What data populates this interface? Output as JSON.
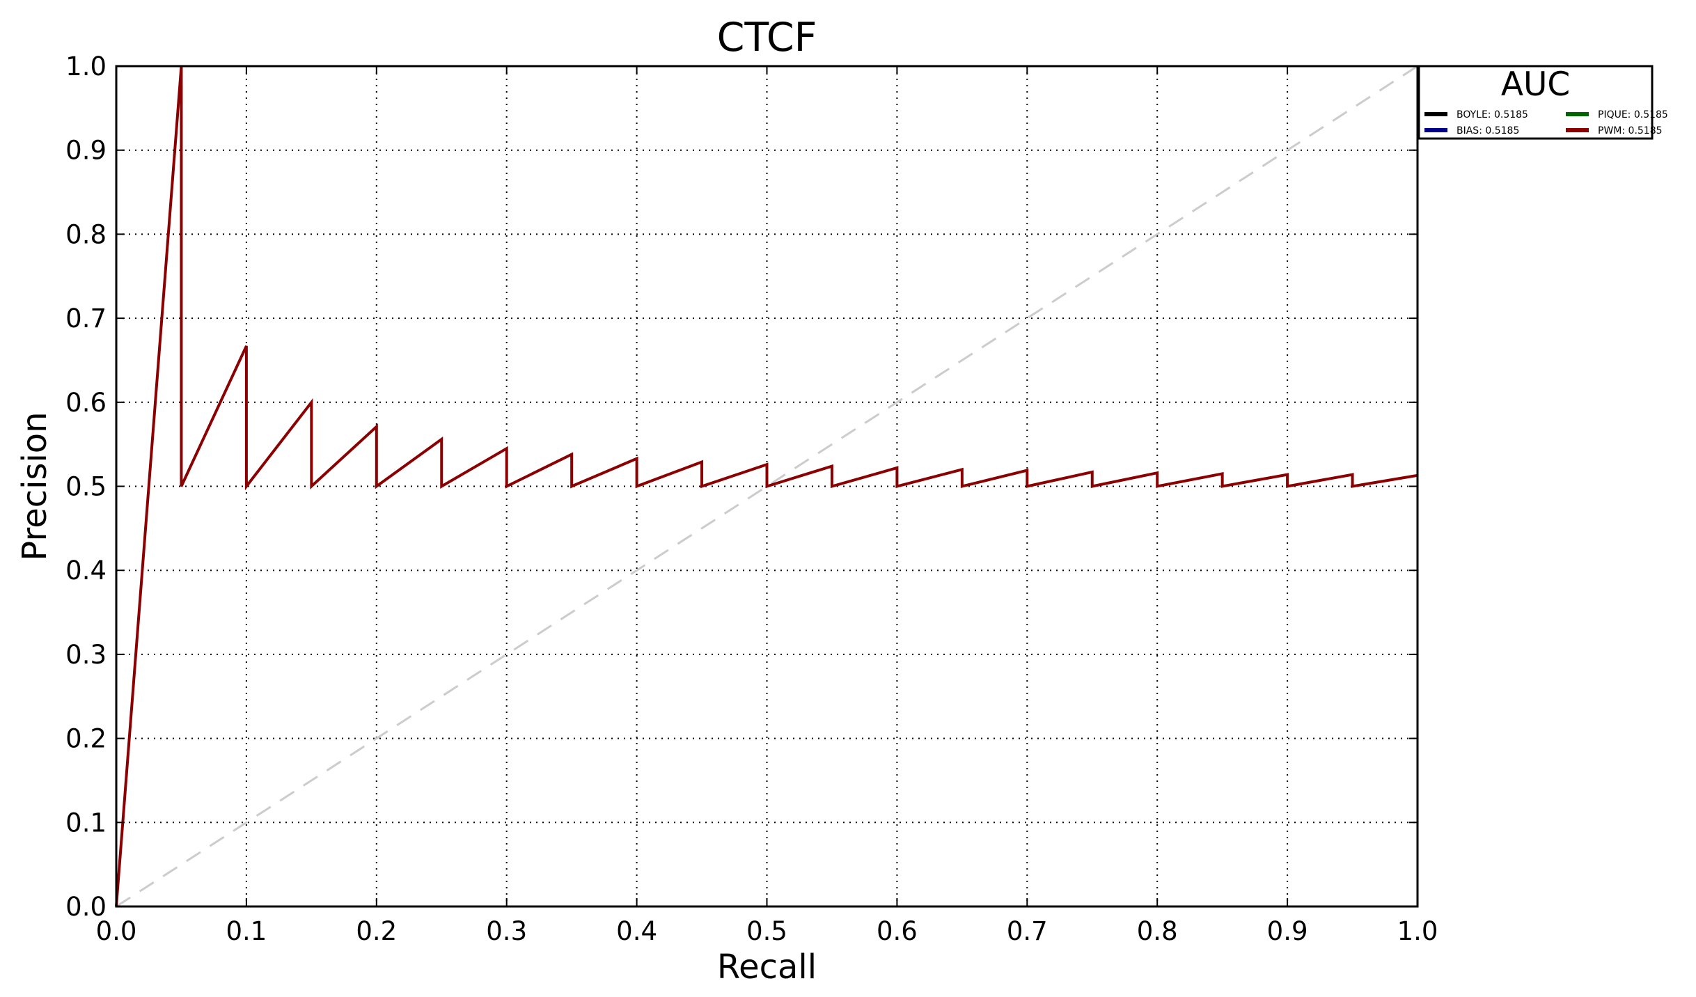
{
  "chart_data": {
    "type": "line",
    "title": "CTCF",
    "xlabel": "Recall",
    "ylabel": "Precision",
    "xlim": [
      0.0,
      1.0
    ],
    "ylim": [
      0.0,
      1.0
    ],
    "xticks": [
      "0.0",
      "0.1",
      "0.2",
      "0.3",
      "0.4",
      "0.5",
      "0.6",
      "0.7",
      "0.8",
      "0.9",
      "1.0"
    ],
    "yticks": [
      "0.0",
      "0.1",
      "0.2",
      "0.3",
      "0.4",
      "0.5",
      "0.6",
      "0.7",
      "0.8",
      "0.9",
      "1.0"
    ],
    "grid": true,
    "legend": {
      "title": "AUC",
      "placement": "outside top-right",
      "entries": [
        {
          "label": "BOYLE: 0.5185",
          "color": "#000000"
        },
        {
          "label": "PIQUE: 0.5185",
          "color": "#006400"
        },
        {
          "label": "BIAS: 0.5185",
          "color": "#00008b"
        },
        {
          "label": "PWM: 0.5185",
          "color": "#8b0000"
        }
      ]
    },
    "reference_line": {
      "x": [
        0.0,
        1.0
      ],
      "y": [
        0.0,
        1.0
      ],
      "color": "#cccccc",
      "style": "dashed"
    },
    "series": [
      {
        "name": "PWM: 0.5185",
        "color": "#8b0000",
        "x": [
          0.0,
          0.05,
          0.05,
          0.1,
          0.1,
          0.15,
          0.15,
          0.2,
          0.2,
          0.25,
          0.25,
          0.3,
          0.3,
          0.35,
          0.35,
          0.4,
          0.4,
          0.45,
          0.45,
          0.5,
          0.5,
          0.55,
          0.55,
          0.6,
          0.6,
          0.65,
          0.65,
          0.7,
          0.7,
          0.75,
          0.75,
          0.8,
          0.8,
          0.85,
          0.85,
          0.9,
          0.9,
          0.95,
          0.95,
          1.0
        ],
        "y": [
          0.0,
          1.0,
          0.5,
          0.667,
          0.5,
          0.6,
          0.5,
          0.571,
          0.5,
          0.556,
          0.5,
          0.545,
          0.5,
          0.538,
          0.5,
          0.533,
          0.5,
          0.529,
          0.5,
          0.526,
          0.5,
          0.524,
          0.5,
          0.522,
          0.5,
          0.52,
          0.5,
          0.519,
          0.5,
          0.517,
          0.5,
          0.516,
          0.5,
          0.515,
          0.5,
          0.514,
          0.5,
          0.514,
          0.5,
          0.513
        ]
      }
    ]
  }
}
